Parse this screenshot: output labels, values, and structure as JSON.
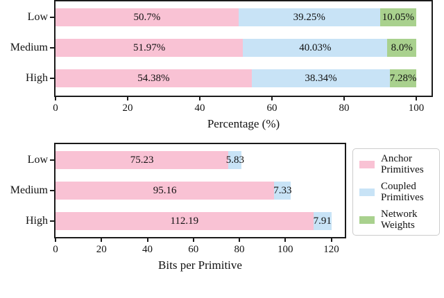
{
  "figure": {
    "background": "#ffffff"
  },
  "colors": {
    "anchor": "#F9C2D4",
    "coupled": "#C8E3F6",
    "network": "#A9D18E",
    "spine": "#1a1a1a",
    "text": "#111111",
    "legend_border": "#cccccc"
  },
  "legend": {
    "position": "right-of-bottom-chart",
    "items": [
      {
        "key": "anchor",
        "color": "#F9C2D4",
        "line1": "Anchor",
        "line2": "Primitives"
      },
      {
        "key": "coupled",
        "color": "#C8E3F6",
        "line1": "Coupled",
        "line2": "Primitives"
      },
      {
        "key": "network",
        "color": "#A9D18E",
        "line1": "Network",
        "line2": "Weights"
      }
    ]
  },
  "chart_data": [
    {
      "type": "bar",
      "orientation": "horizontal",
      "stacked": true,
      "title": "",
      "xlabel": "Percentage (%)",
      "ylabel": "",
      "categories": [
        "Low",
        "Medium",
        "High"
      ],
      "series": [
        {
          "name": "Anchor Primitives",
          "color_key": "anchor",
          "values": [
            50.7,
            51.97,
            54.38
          ],
          "value_labels": [
            "50.7%",
            "51.97%",
            "54.38%"
          ]
        },
        {
          "name": "Coupled Primitives",
          "color_key": "coupled",
          "values": [
            39.25,
            40.03,
            38.34
          ],
          "value_labels": [
            "39.25%",
            "40.03%",
            "38.34%"
          ]
        },
        {
          "name": "Network Weights",
          "color_key": "network",
          "values": [
            10.05,
            8.0,
            7.28
          ],
          "value_labels": [
            "10.05%",
            "8.0%",
            "7.28%"
          ]
        }
      ],
      "xticks": [
        0,
        20,
        40,
        60,
        80,
        100
      ],
      "xtick_labels": [
        "0",
        "20",
        "40",
        "60",
        "80",
        "100"
      ],
      "xlim": [
        0,
        104.2
      ],
      "grid": false,
      "legend_in_panel": false
    },
    {
      "type": "bar",
      "orientation": "horizontal",
      "stacked": true,
      "title": "",
      "xlabel": "Bits per Primitive",
      "ylabel": "",
      "categories": [
        "Low",
        "Medium",
        "High"
      ],
      "series": [
        {
          "name": "Anchor Primitives",
          "color_key": "anchor",
          "values": [
            75.23,
            95.16,
            112.19
          ],
          "value_labels": [
            "75.23",
            "95.16",
            "112.19"
          ]
        },
        {
          "name": "Coupled Primitives",
          "color_key": "coupled",
          "values": [
            5.83,
            7.33,
            7.91
          ],
          "value_labels": [
            "5.83",
            "7.33",
            "7.91"
          ]
        }
      ],
      "xticks": [
        0,
        20,
        40,
        60,
        80,
        100,
        120
      ],
      "xtick_labels": [
        "0",
        "20",
        "40",
        "60",
        "80",
        "100",
        "120"
      ],
      "xlim": [
        0,
        125.9
      ],
      "grid": false,
      "legend_in_panel": false
    }
  ]
}
